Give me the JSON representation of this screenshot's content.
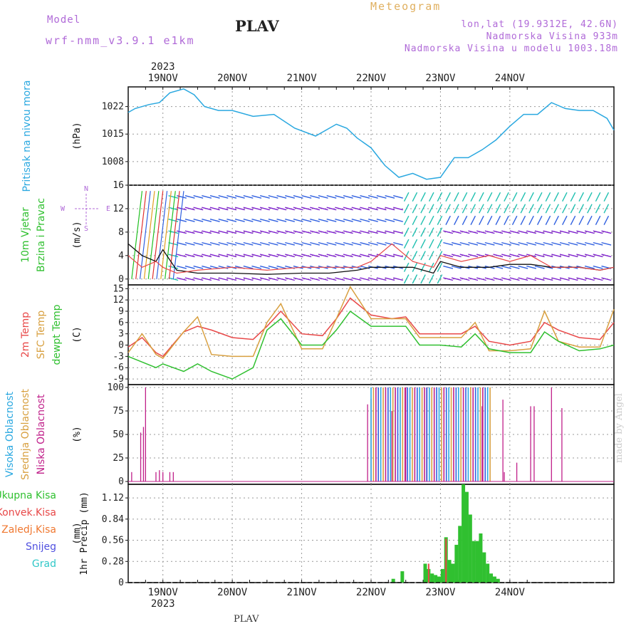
{
  "header": {
    "model_label": "Model",
    "model_version": "wrf-nmm_v3.9.1 e1km",
    "station": "PLAV",
    "product": "Meteogram",
    "lonlat": "lon,lat (19.9312E, 42.6N)",
    "elevation": "Nadmorska Visina 933m",
    "model_elevation": "Nadmorska Visina u modelu 1003.18m"
  },
  "footer": {
    "station": "PLAV",
    "credit": "made by Angel"
  },
  "colors": {
    "pressure": "#2aa8e0",
    "temp2m": "#e84848",
    "sfc": "#d8a040",
    "dewpt": "#30c030",
    "low": "#c0208a",
    "mid": "#d8a040",
    "high": "#2aa8e0",
    "precip": "#30c030",
    "conv": "#e84848"
  },
  "chart_data": [
    {
      "type": "line",
      "id": "pressure",
      "ylabel": "Pritisak na nivou mora",
      "unit": "(hPa)",
      "ylim": [
        1002,
        1027
      ],
      "yticks": [
        1008,
        1015,
        1022
      ],
      "x": [
        -0.5,
        -0.4,
        -0.2,
        -0.05,
        0.1,
        0.3,
        0.45,
        0.6,
        0.8,
        1.0,
        1.3,
        1.6,
        1.9,
        2.2,
        2.5,
        2.65,
        2.8,
        3.0,
        3.2,
        3.4,
        3.6,
        3.8,
        4.0,
        4.2,
        4.4,
        4.6,
        4.8,
        5.0,
        5.2,
        5.4,
        5.6,
        5.8,
        6.0,
        6.2,
        6.4,
        6.5
      ],
      "series": [
        {
          "values": [
            1020.5,
            1021.5,
            1022.5,
            1023,
            1025.5,
            1026.5,
            1025,
            1022,
            1021,
            1021,
            1019.5,
            1020,
            1016.5,
            1014.5,
            1017.5,
            1016.5,
            1014,
            1011.5,
            1007,
            1004,
            1005,
            1003.5,
            1004,
            1009,
            1009,
            1011,
            1013.5,
            1017,
            1020,
            1020,
            1023,
            1021.5,
            1021,
            1021,
            1019,
            1016
          ]
        }
      ]
    },
    {
      "type": "line",
      "id": "wind",
      "ylabel": "10m Vjetar Brzina i Pravac",
      "unit": "(m/s)",
      "ylim": [
        -1,
        16
      ],
      "yticks": [
        0,
        4,
        8,
        12,
        16
      ],
      "direction_legend": [
        "N",
        "W",
        "E",
        "S"
      ],
      "x": [
        -0.5,
        -0.3,
        -0.1,
        0.0,
        0.2,
        0.5,
        1.0,
        1.5,
        2.0,
        2.4,
        2.8,
        3.0,
        3.3,
        3.6,
        3.9,
        4.0,
        4.3,
        4.7,
        5.0,
        5.3,
        5.6,
        6.0,
        6.3,
        6.5
      ],
      "series": [
        {
          "name": "speed",
          "values": [
            6,
            4,
            3,
            5,
            1.5,
            1,
            1,
            0.8,
            1,
            1,
            1.5,
            2,
            2,
            2,
            1,
            3,
            2,
            2,
            2.5,
            2.5,
            2,
            2,
            1.5,
            2
          ]
        },
        {
          "name": "gust",
          "values": [
            4,
            2,
            3,
            2,
            1,
            1.5,
            2,
            1.5,
            2,
            2,
            2,
            3,
            6,
            3,
            2,
            4,
            3,
            4,
            3,
            4,
            2,
            2,
            1.5,
            2
          ]
        }
      ]
    },
    {
      "type": "line",
      "id": "temperature",
      "ylabel": "2m Temp / SFC Temp / dewpt Temp",
      "series_names": [
        "2m Temp",
        "SFC Temp",
        "dewpt Temp"
      ],
      "unit": "(C)",
      "ylim": [
        -10.5,
        16
      ],
      "yticks": [
        -9,
        -6,
        -3,
        0,
        3,
        6,
        9,
        12,
        15
      ],
      "x": [
        -0.5,
        -0.3,
        -0.1,
        0.0,
        0.3,
        0.5,
        0.7,
        1.0,
        1.3,
        1.5,
        1.7,
        2.0,
        2.3,
        2.5,
        2.7,
        3.0,
        3.3,
        3.5,
        3.7,
        4.0,
        4.3,
        4.5,
        4.7,
        5.0,
        5.3,
        5.5,
        5.7,
        6.0,
        6.3,
        6.5
      ],
      "series": [
        {
          "name": "2m Temp",
          "values": [
            -0.5,
            2,
            -2,
            -3,
            3.5,
            5,
            4,
            2,
            1.5,
            5,
            9,
            3,
            2.5,
            7,
            12.5,
            8,
            7,
            7.5,
            3,
            3,
            3,
            5,
            1,
            0,
            1,
            6,
            4,
            2,
            1.5,
            6
          ]
        },
        {
          "name": "SFC Temp",
          "values": [
            -2,
            3,
            -2.5,
            -3.5,
            3.5,
            7.5,
            -2.5,
            -3,
            -3,
            6,
            11,
            -1,
            -1,
            7,
            15.5,
            7,
            7,
            7,
            2,
            2,
            2,
            6,
            -1.5,
            -1.5,
            -1,
            9,
            1,
            -0.5,
            -0.5,
            9.5
          ]
        },
        {
          "name": "dewpt Temp",
          "values": [
            -3,
            -4.5,
            -6,
            -5,
            -7,
            -5,
            -7,
            -9,
            -6,
            4,
            7,
            0,
            0,
            4,
            9,
            5,
            5,
            5,
            0,
            0,
            -0.5,
            3,
            -1,
            -2,
            -2,
            3.5,
            1,
            -1.5,
            -1,
            0
          ]
        }
      ]
    },
    {
      "type": "bar",
      "id": "clouds",
      "ylabel": "Visoka Oblacnost / Srednja Oblacnost / Niska Oblacnost",
      "series_names": [
        "Visoka Oblacnost",
        "Srednja Oblacnost",
        "Niska Oblacnost"
      ],
      "unit": "(%)",
      "ylim": [
        -3,
        103
      ],
      "yticks": [
        0,
        25,
        50,
        75,
        100
      ],
      "low_x": [
        -0.45,
        -0.32,
        -0.28,
        -0.25,
        -0.1,
        -0.05,
        0.0,
        0.1,
        0.15,
        2.95,
        3.0,
        3.3,
        3.5,
        3.8,
        4.05,
        4.6,
        4.9,
        4.92,
        5.1,
        5.3,
        5.35,
        5.6,
        5.75
      ],
      "low_values": [
        10,
        52,
        58,
        100,
        10,
        12,
        10,
        10,
        10,
        82,
        88,
        75,
        100,
        100,
        100,
        80,
        87,
        10,
        20,
        80,
        80,
        100,
        78
      ],
      "dense_band": {
        "start": 3.0,
        "end": 4.75,
        "value": 100
      }
    },
    {
      "type": "bar",
      "id": "precip",
      "ylabel": "1hr Precip",
      "series_names": [
        "Ukupna Kisa",
        "Konvek.Kisa",
        "Zaledj.Kisa",
        "Snijeg",
        "Grad"
      ],
      "unit": "(mm)",
      "ylim": [
        0,
        1.3
      ],
      "yticks": [
        0,
        0.28,
        0.56,
        0.84,
        1.12
      ],
      "x": [
        3.32,
        3.45,
        3.78,
        3.83,
        3.88,
        3.93,
        3.98,
        4.03,
        4.08,
        4.13,
        4.18,
        4.23,
        4.28,
        4.33,
        4.38,
        4.43,
        4.48,
        4.53,
        4.58,
        4.63,
        4.68,
        4.73,
        4.78,
        4.83
      ],
      "values": [
        0.05,
        0.15,
        0.25,
        0.18,
        0.12,
        0.1,
        0.08,
        0.18,
        0.6,
        0.3,
        0.25,
        0.5,
        0.75,
        1.3,
        1.2,
        0.9,
        0.55,
        0.55,
        0.65,
        0.4,
        0.25,
        0.12,
        0.08,
        0.05
      ],
      "conv_x": [
        3.83,
        4.08
      ],
      "conv_values": [
        0.25,
        0.58
      ]
    }
  ],
  "axis_dates": {
    "year": "2023",
    "labels": [
      "19NOV",
      "20NOV",
      "21NOV",
      "22NOV",
      "23NOV",
      "24NOV"
    ],
    "xlim": [
      -0.5,
      6.5
    ]
  },
  "legend": {
    "pressure": [
      "Pritisak na nivou mora"
    ],
    "wind": [
      "10m Vjetar",
      "Brzina i Pravac"
    ],
    "temp": [
      "2m Temp",
      "SFC Temp",
      "dewpt Temp"
    ],
    "cloud": [
      "Visoka Oblacnost",
      "Srednja Oblacnost",
      "Niska Oblacnost"
    ],
    "precip": [
      "Ukupna Kisa",
      "Konvek.Kisa",
      "Zaledj.Kisa",
      "Snijeg",
      "Grad"
    ]
  }
}
